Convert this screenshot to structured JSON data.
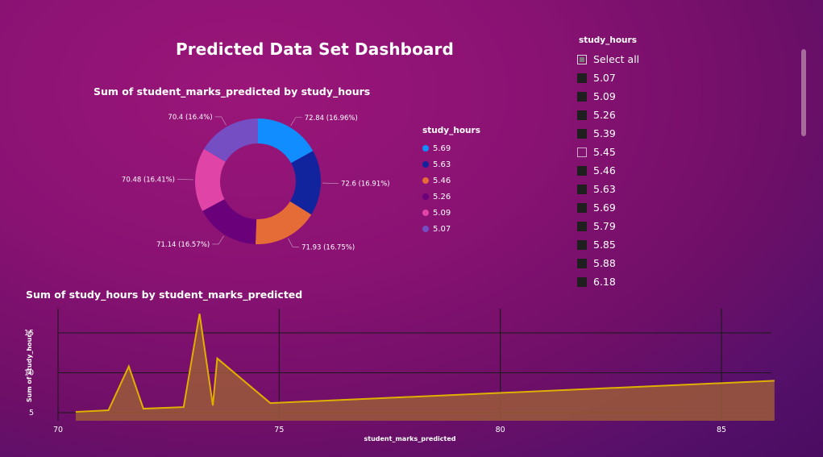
{
  "dashboard": {
    "title": "Predicted Data Set Dashboard"
  },
  "colors": {
    "background": "#8a1273",
    "area_line": "#e0b000",
    "area_fill": "#9b5a3a"
  },
  "slicer": {
    "title": "study_hours",
    "scrollbar_visible": true,
    "items": [
      {
        "label": "Select all",
        "state": "partial"
      },
      {
        "label": "5.07",
        "state": "checked"
      },
      {
        "label": "5.09",
        "state": "checked"
      },
      {
        "label": "5.26",
        "state": "checked"
      },
      {
        "label": "5.39",
        "state": "checked"
      },
      {
        "label": "5.45",
        "state": "unchecked"
      },
      {
        "label": "5.46",
        "state": "checked"
      },
      {
        "label": "5.63",
        "state": "checked"
      },
      {
        "label": "5.69",
        "state": "checked"
      },
      {
        "label": "5.79",
        "state": "checked"
      },
      {
        "label": "5.85",
        "state": "checked"
      },
      {
        "label": "5.88",
        "state": "checked"
      },
      {
        "label": "6.18",
        "state": "checked"
      }
    ]
  },
  "chart_data": [
    {
      "type": "pie",
      "donut": true,
      "title": "Sum of student_marks_predicted by study_hours",
      "legend_title": "study_hours",
      "legend_position": "right",
      "slices": [
        {
          "category": "5.69",
          "value": 72.84,
          "label": "72.84 (16.96%)",
          "color": "#118dff"
        },
        {
          "category": "5.63",
          "value": 72.6,
          "label": "72.6 (16.91%)",
          "color": "#12239e"
        },
        {
          "category": "5.46",
          "value": 71.93,
          "label": "71.93 (16.75%)",
          "color": "#e66c37"
        },
        {
          "category": "5.26",
          "value": 71.14,
          "label": "71.14 (16.57%)",
          "color": "#6b007b"
        },
        {
          "category": "5.09",
          "value": 70.48,
          "label": "70.48 (16.41%)",
          "color": "#e044a7"
        },
        {
          "category": "5.07",
          "value": 70.4,
          "label": "70.4 (16.4%)",
          "color": "#744ec2"
        }
      ]
    },
    {
      "type": "area",
      "title": "Sum of study_hours by student_marks_predicted",
      "xlabel": "student_marks_predicted",
      "ylabel": "Sum of study_hours",
      "xlim": [
        70,
        86.2
      ],
      "ylim": [
        4,
        18.5
      ],
      "x_ticks": [
        70,
        75,
        80,
        85
      ],
      "y_ticks": [
        5,
        10,
        15
      ],
      "grid": true,
      "points": [
        {
          "x": 70.4,
          "y": 5.1
        },
        {
          "x": 71.14,
          "y": 5.3
        },
        {
          "x": 71.6,
          "y": 10.8
        },
        {
          "x": 71.93,
          "y": 5.5
        },
        {
          "x": 72.84,
          "y": 5.7
        },
        {
          "x": 73.2,
          "y": 17.4
        },
        {
          "x": 73.5,
          "y": 5.9
        },
        {
          "x": 73.6,
          "y": 11.8
        },
        {
          "x": 74.8,
          "y": 6.2
        },
        {
          "x": 86.2,
          "y": 9.0
        }
      ]
    }
  ]
}
